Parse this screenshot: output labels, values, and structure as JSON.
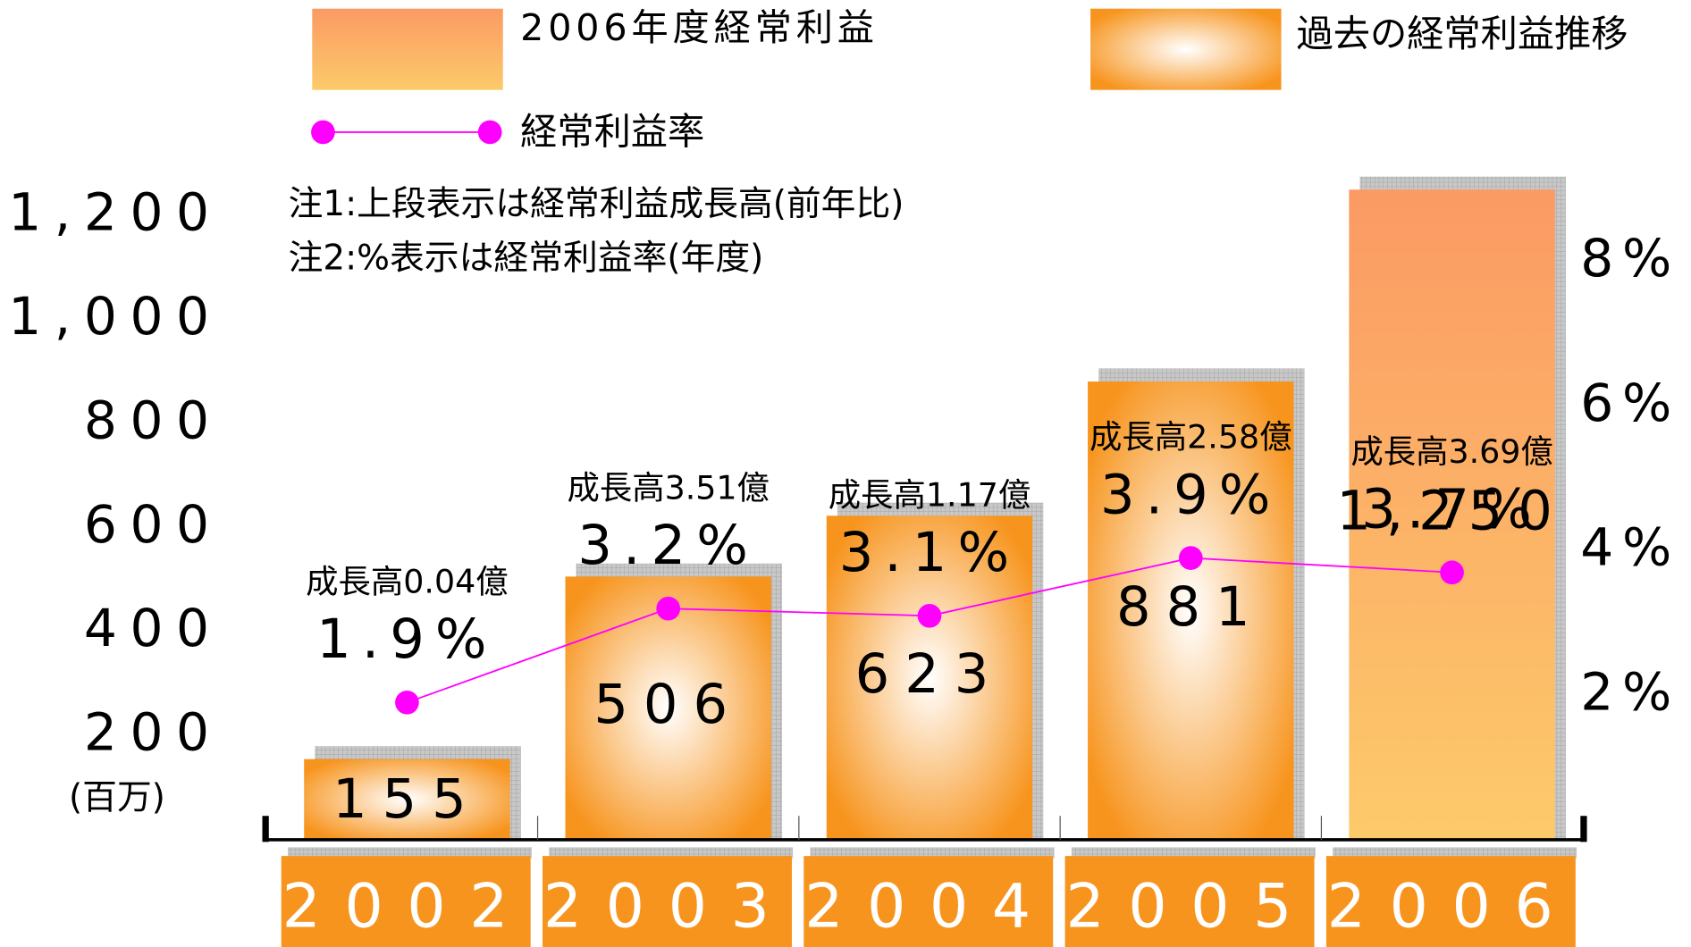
{
  "chart_data": {
    "type": "bar",
    "y_label": "(百万)",
    "notes": [
      "注1:上段表示は経常利益成長高(前年比)",
      "注2:%表示は経常利益率(年度)"
    ],
    "categories": [
      "2002",
      "2003",
      "2004",
      "2005",
      "2006"
    ],
    "series": [
      {
        "name": "過去の経常利益推移",
        "type": "bar",
        "color": "#f7941d",
        "values": [
          155,
          506,
          623,
          881,
          null
        ],
        "value_labels": [
          "155",
          "506",
          "623",
          "881",
          null
        ]
      },
      {
        "name": "2006年度経常利益",
        "type": "bar",
        "color": "#fba45e",
        "values": [
          null,
          null,
          null,
          null,
          1250
        ],
        "value_labels": [
          null,
          null,
          null,
          null,
          "1,250"
        ]
      },
      {
        "name": "経常利益率",
        "type": "line",
        "axis": "y2",
        "color": "#ff00ff",
        "values": [
          1.9,
          3.2,
          3.1,
          3.9,
          3.7
        ],
        "value_labels": [
          "1.9%",
          "3.2%",
          "3.1%",
          "3.9%",
          "3.7%"
        ]
      }
    ],
    "annotations": [
      "成長高0.04億",
      "成長高3.51億",
      "成長高1.17億",
      "成長高2.58億",
      "成長高3.69億"
    ],
    "ylim": [
      0,
      1250
    ],
    "yticks": [
      200,
      400,
      600,
      800,
      {
        "value": 1000,
        "label": "1,000"
      },
      {
        "value": 1200,
        "label": "1,200"
      }
    ],
    "y2lim": [
      0,
      9
    ],
    "y2ticks": [
      {
        "value": 2,
        "label": "2%"
      },
      {
        "value": 4,
        "label": "4%"
      },
      {
        "value": 6,
        "label": "6%"
      },
      {
        "value": 8,
        "label": "8%"
      }
    ]
  }
}
